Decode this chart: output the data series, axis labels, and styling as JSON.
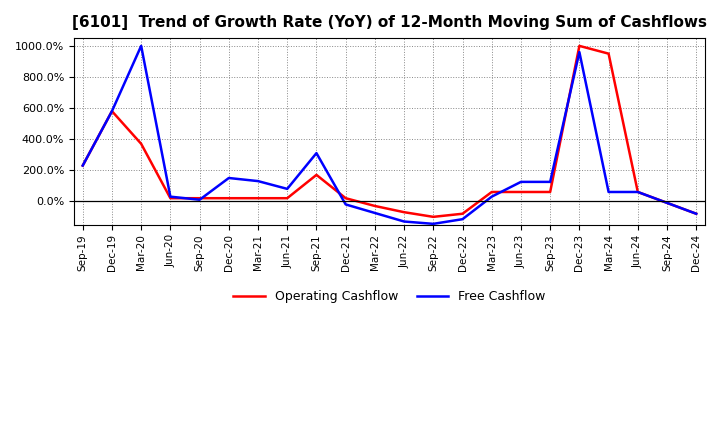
{
  "title": "[6101]  Trend of Growth Rate (YoY) of 12-Month Moving Sum of Cashflows",
  "title_fontsize": 11,
  "ylim": [
    -150,
    1050
  ],
  "yticks": [
    0,
    200,
    400,
    600,
    800,
    1000
  ],
  "ytick_labels": [
    "0.0%",
    "200.0%",
    "400.0%",
    "600.0%",
    "800.0%",
    "1000.0%"
  ],
  "background_color": "#ffffff",
  "plot_bg_color": "#ffffff",
  "grid_color": "#888888",
  "x_labels": [
    "Sep-19",
    "Dec-19",
    "Mar-20",
    "Jun-20",
    "Sep-20",
    "Dec-20",
    "Mar-21",
    "Jun-21",
    "Sep-21",
    "Dec-21",
    "Mar-22",
    "Jun-22",
    "Sep-22",
    "Dec-22",
    "Mar-23",
    "Jun-23",
    "Sep-23",
    "Dec-23",
    "Mar-24",
    "Jun-24",
    "Sep-24",
    "Dec-24"
  ],
  "operating_cashflow": [
    230,
    580,
    370,
    20,
    20,
    20,
    20,
    20,
    170,
    20,
    -30,
    -70,
    -100,
    -80,
    60,
    60,
    60,
    1000,
    950,
    60,
    -10,
    -80
  ],
  "free_cashflow": [
    230,
    580,
    1000,
    30,
    10,
    150,
    130,
    80,
    310,
    -20,
    -75,
    -130,
    -145,
    -115,
    30,
    125,
    125,
    960,
    60,
    60,
    -10,
    -80
  ],
  "op_color": "#ff0000",
  "fc_color": "#0000ff",
  "line_width": 1.8,
  "zero_line_color": "#000000",
  "legend_op_label": "Operating Cashflow",
  "legend_fc_label": "Free Cashflow"
}
